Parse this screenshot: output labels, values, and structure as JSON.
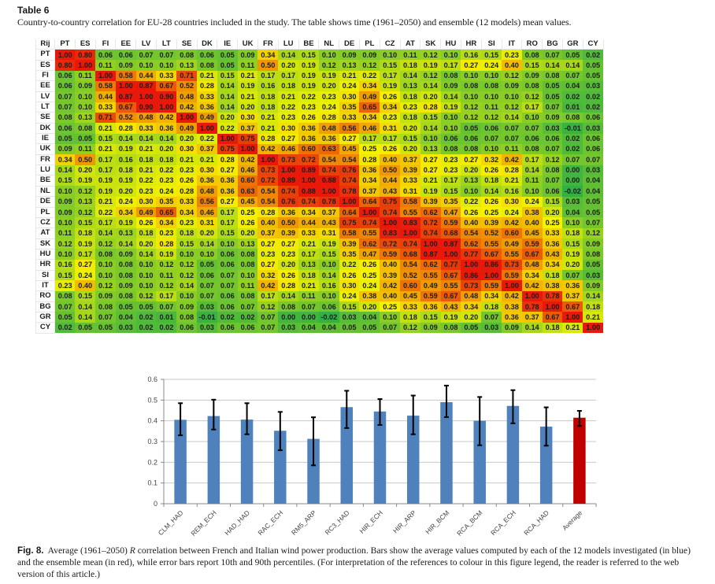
{
  "table": {
    "title": "Table 6",
    "caption": "Country-to-country correlation for EU-28 countries included in the study. The table shows time (1961–2050) and ensemble (12 models) mean values.",
    "corner_label": "Rij",
    "countries": [
      "PT",
      "ES",
      "FI",
      "EE",
      "LV",
      "LT",
      "SE",
      "DK",
      "IE",
      "UK",
      "FR",
      "LU",
      "BE",
      "NL",
      "DE",
      "PL",
      "CZ",
      "AT",
      "SK",
      "HU",
      "HR",
      "SI",
      "IT",
      "RO",
      "BG",
      "GR",
      "CY"
    ],
    "rows": [
      [
        "1.00",
        "0.80",
        "0.06",
        "0.06",
        "0.07",
        "0.07",
        "0.08",
        "0.06",
        "0.05",
        "0.09",
        "0.34",
        "0.14",
        "0.15",
        "0.10",
        "0.09",
        "0.09",
        "0.10",
        "0.11",
        "0.12",
        "0.10",
        "0.16",
        "0.15",
        "0.23",
        "0.08",
        "0.07",
        "0.05",
        "0.02"
      ],
      [
        "0.80",
        "1.00",
        "0.11",
        "0.09",
        "0.10",
        "0.10",
        "0.13",
        "0.08",
        "0.05",
        "0.11",
        "0.50",
        "0.20",
        "0.19",
        "0.12",
        "0.13",
        "0.12",
        "0.15",
        "0.18",
        "0.19",
        "0.17",
        "0.27",
        "0.24",
        "0.40",
        "0.15",
        "0.14",
        "0.14",
        "0.05"
      ],
      [
        "0.06",
        "0.11",
        "1.00",
        "0.58",
        "0.44",
        "0.33",
        "0.71",
        "0.21",
        "0.15",
        "0.21",
        "0.17",
        "0.17",
        "0.19",
        "0.19",
        "0.21",
        "0.22",
        "0.17",
        "0.14",
        "0.12",
        "0.08",
        "0.10",
        "0.10",
        "0.12",
        "0.09",
        "0.08",
        "0.07",
        "0.05"
      ],
      [
        "0.06",
        "0.09",
        "0.58",
        "1.00",
        "0.87",
        "0.67",
        "0.52",
        "0.28",
        "0.14",
        "0.19",
        "0.16",
        "0.18",
        "0.19",
        "0.20",
        "0.24",
        "0.34",
        "0.19",
        "0.13",
        "0.14",
        "0.09",
        "0.08",
        "0.08",
        "0.09",
        "0.08",
        "0.05",
        "0.04",
        "0.03"
      ],
      [
        "0.07",
        "0.10",
        "0.44",
        "0.87",
        "1.00",
        "0.90",
        "0.48",
        "0.33",
        "0.14",
        "0.21",
        "0.18",
        "0.21",
        "0.22",
        "0.23",
        "0.30",
        "0.49",
        "0.26",
        "0.18",
        "0.20",
        "0.14",
        "0.10",
        "0.10",
        "0.10",
        "0.12",
        "0.05",
        "0.02",
        "0.02"
      ],
      [
        "0.07",
        "0.10",
        "0.33",
        "0.67",
        "0.90",
        "1.00",
        "0.42",
        "0.36",
        "0.14",
        "0.20",
        "0.18",
        "0.22",
        "0.23",
        "0.24",
        "0.35",
        "0.65",
        "0.34",
        "0.23",
        "0.28",
        "0.19",
        "0.12",
        "0.11",
        "0.12",
        "0.17",
        "0.07",
        "0.01",
        "0.02"
      ],
      [
        "0.08",
        "0.13",
        "0.71",
        "0.52",
        "0.48",
        "0.42",
        "1.00",
        "0.49",
        "0.20",
        "0.30",
        "0.21",
        "0.23",
        "0.26",
        "0.28",
        "0.33",
        "0.34",
        "0.23",
        "0.18",
        "0.15",
        "0.10",
        "0.12",
        "0.12",
        "0.14",
        "0.10",
        "0.09",
        "0.08",
        "0.06"
      ],
      [
        "0.06",
        "0.08",
        "0.21",
        "0.28",
        "0.33",
        "0.36",
        "0.49",
        "1.00",
        "0.22",
        "0.37",
        "0.21",
        "0.30",
        "0.36",
        "0.48",
        "0.56",
        "0.46",
        "0.31",
        "0.20",
        "0.14",
        "0.10",
        "0.05",
        "0.06",
        "0.07",
        "0.07",
        "0.03",
        "-0.01",
        "0.03"
      ],
      [
        "0.05",
        "0.05",
        "0.15",
        "0.14",
        "0.14",
        "0.14",
        "0.20",
        "0.22",
        "1.00",
        "0.75",
        "0.28",
        "0.27",
        "0.36",
        "0.36",
        "0.27",
        "0.17",
        "0.17",
        "0.15",
        "0.10",
        "0.06",
        "0.06",
        "0.07",
        "0.07",
        "0.06",
        "0.06",
        "0.02",
        "0.06"
      ],
      [
        "0.09",
        "0.11",
        "0.21",
        "0.19",
        "0.21",
        "0.20",
        "0.30",
        "0.37",
        "0.75",
        "1.00",
        "0.42",
        "0.46",
        "0.60",
        "0.63",
        "0.45",
        "0.25",
        "0.26",
        "0.20",
        "0.13",
        "0.08",
        "0.08",
        "0.10",
        "0.11",
        "0.08",
        "0.07",
        "0.02",
        "0.06"
      ],
      [
        "0.34",
        "0.50",
        "0.17",
        "0.16",
        "0.18",
        "0.18",
        "0.21",
        "0.21",
        "0.28",
        "0.42",
        "1.00",
        "0.73",
        "0.72",
        "0.54",
        "0.54",
        "0.28",
        "0.40",
        "0.37",
        "0.27",
        "0.23",
        "0.27",
        "0.32",
        "0.42",
        "0.17",
        "0.12",
        "0.07",
        "0.07"
      ],
      [
        "0.14",
        "0.20",
        "0.17",
        "0.18",
        "0.21",
        "0.22",
        "0.23",
        "0.30",
        "0.27",
        "0.46",
        "0.73",
        "1.00",
        "0.89",
        "0.74",
        "0.76",
        "0.36",
        "0.50",
        "0.39",
        "0.27",
        "0.23",
        "0.20",
        "0.26",
        "0.28",
        "0.14",
        "0.08",
        "0.00",
        "0.03"
      ],
      [
        "0.15",
        "0.19",
        "0.19",
        "0.19",
        "0.22",
        "0.23",
        "0.26",
        "0.36",
        "0.36",
        "0.60",
        "0.72",
        "0.89",
        "1.00",
        "0.88",
        "0.74",
        "0.34",
        "0.44",
        "0.33",
        "0.21",
        "0.17",
        "0.13",
        "0.18",
        "0.21",
        "0.11",
        "0.07",
        "0.00",
        "0.04"
      ],
      [
        "0.10",
        "0.12",
        "0.19",
        "0.20",
        "0.23",
        "0.24",
        "0.28",
        "0.48",
        "0.36",
        "0.63",
        "0.54",
        "0.74",
        "0.88",
        "1.00",
        "0.78",
        "0.37",
        "0.43",
        "0.31",
        "0.19",
        "0.15",
        "0.10",
        "0.14",
        "0.16",
        "0.10",
        "0.06",
        "-0.02",
        "0.04"
      ],
      [
        "0.09",
        "0.13",
        "0.21",
        "0.24",
        "0.30",
        "0.35",
        "0.33",
        "0.56",
        "0.27",
        "0.45",
        "0.54",
        "0.76",
        "0.74",
        "0.78",
        "1.00",
        "0.64",
        "0.75",
        "0.58",
        "0.39",
        "0.35",
        "0.22",
        "0.26",
        "0.30",
        "0.24",
        "0.15",
        "0.03",
        "0.05"
      ],
      [
        "0.09",
        "0.12",
        "0.22",
        "0.34",
        "0.49",
        "0.65",
        "0.34",
        "0.46",
        "0.17",
        "0.25",
        "0.28",
        "0.36",
        "0.34",
        "0.37",
        "0.64",
        "1.00",
        "0.74",
        "0.55",
        "0.62",
        "0.47",
        "0.26",
        "0.25",
        "0.24",
        "0.38",
        "0.20",
        "0.04",
        "0.05"
      ],
      [
        "0.10",
        "0.15",
        "0.17",
        "0.19",
        "0.26",
        "0.34",
        "0.23",
        "0.31",
        "0.17",
        "0.26",
        "0.40",
        "0.50",
        "0.44",
        "0.43",
        "0.75",
        "0.74",
        "1.00",
        "0.83",
        "0.72",
        "0.59",
        "0.40",
        "0.39",
        "0.42",
        "0.40",
        "0.25",
        "0.10",
        "0.07"
      ],
      [
        "0.11",
        "0.18",
        "0.14",
        "0.13",
        "0.18",
        "0.23",
        "0.18",
        "0.20",
        "0.15",
        "0.20",
        "0.37",
        "0.39",
        "0.33",
        "0.31",
        "0.58",
        "0.55",
        "0.83",
        "1.00",
        "0.74",
        "0.68",
        "0.54",
        "0.52",
        "0.60",
        "0.45",
        "0.33",
        "0.18",
        "0.12"
      ],
      [
        "0.12",
        "0.19",
        "0.12",
        "0.14",
        "0.20",
        "0.28",
        "0.15",
        "0.14",
        "0.10",
        "0.13",
        "0.27",
        "0.27",
        "0.21",
        "0.19",
        "0.39",
        "0.62",
        "0.72",
        "0.74",
        "1.00",
        "0.87",
        "0.62",
        "0.55",
        "0.49",
        "0.59",
        "0.36",
        "0.15",
        "0.09"
      ],
      [
        "0.10",
        "0.17",
        "0.08",
        "0.09",
        "0.14",
        "0.19",
        "0.10",
        "0.10",
        "0.06",
        "0.08",
        "0.23",
        "0.23",
        "0.17",
        "0.15",
        "0.35",
        "0.47",
        "0.59",
        "0.68",
        "0.87",
        "1.00",
        "0.77",
        "0.67",
        "0.55",
        "0.67",
        "0.43",
        "0.19",
        "0.08"
      ],
      [
        "0.16",
        "0.27",
        "0.10",
        "0.08",
        "0.10",
        "0.12",
        "0.12",
        "0.05",
        "0.06",
        "0.08",
        "0.27",
        "0.20",
        "0.13",
        "0.10",
        "0.22",
        "0.26",
        "0.40",
        "0.54",
        "0.62",
        "0.77",
        "1.00",
        "0.86",
        "0.73",
        "0.48",
        "0.34",
        "0.20",
        "0.05"
      ],
      [
        "0.15",
        "0.24",
        "0.10",
        "0.08",
        "0.10",
        "0.11",
        "0.12",
        "0.06",
        "0.07",
        "0.10",
        "0.32",
        "0.26",
        "0.18",
        "0.14",
        "0.26",
        "0.25",
        "0.39",
        "0.52",
        "0.55",
        "0.67",
        "0.86",
        "1.00",
        "0.59",
        "0.34",
        "0.18",
        "0.07",
        "0.03"
      ],
      [
        "0.23",
        "0.40",
        "0.12",
        "0.09",
        "0.10",
        "0.12",
        "0.14",
        "0.07",
        "0.07",
        "0.11",
        "0.42",
        "0.28",
        "0.21",
        "0.16",
        "0.30",
        "0.24",
        "0.42",
        "0.60",
        "0.49",
        "0.55",
        "0.73",
        "0.59",
        "1.00",
        "0.42",
        "0.38",
        "0.36",
        "0.09"
      ],
      [
        "0.08",
        "0.15",
        "0.09",
        "0.08",
        "0.12",
        "0.17",
        "0.10",
        "0.07",
        "0.06",
        "0.08",
        "0.17",
        "0.14",
        "0.11",
        "0.10",
        "0.24",
        "0.38",
        "0.40",
        "0.45",
        "0.59",
        "0.67",
        "0.48",
        "0.34",
        "0.42",
        "1.00",
        "0.78",
        "0.37",
        "0.14"
      ],
      [
        "0.07",
        "0.14",
        "0.08",
        "0.05",
        "0.05",
        "0.07",
        "0.09",
        "0.03",
        "0.06",
        "0.07",
        "0.12",
        "0.08",
        "0.07",
        "0.06",
        "0.15",
        "0.20",
        "0.25",
        "0.33",
        "0.36",
        "0.43",
        "0.34",
        "0.18",
        "0.38",
        "0.78",
        "1.00",
        "0.67",
        "0.18"
      ],
      [
        "0.05",
        "0.14",
        "0.07",
        "0.04",
        "0.02",
        "0.01",
        "0.08",
        "-0.01",
        "0.02",
        "0.02",
        "0.07",
        "0.00",
        "0.00",
        "-0.02",
        "0.03",
        "0.04",
        "0.10",
        "0.18",
        "0.15",
        "0.19",
        "0.20",
        "0.07",
        "0.36",
        "0.37",
        "0.67",
        "1.00",
        "0.21"
      ],
      [
        "0.02",
        "0.05",
        "0.05",
        "0.03",
        "0.02",
        "0.02",
        "0.06",
        "0.03",
        "0.06",
        "0.06",
        "0.07",
        "0.03",
        "0.04",
        "0.04",
        "0.05",
        "0.05",
        "0.07",
        "0.12",
        "0.09",
        "0.08",
        "0.05",
        "0.03",
        "0.09",
        "0.14",
        "0.18",
        "0.21",
        "1.00"
      ]
    ],
    "colors": {
      "low": "#33b044",
      "mid": "#f5f200",
      "high": "#e8180a"
    }
  },
  "chart_data": {
    "type": "bar",
    "title": "",
    "xlabel": "",
    "ylabel": "",
    "categories": [
      "CLM_HAD",
      "REM_ECH",
      "HAD_HAD",
      "RAC_ECH",
      "RM5_ARP",
      "RC3_HAD",
      "HIR_ECH",
      "HIR_ARP",
      "HIR_BCM",
      "RCA_BCM",
      "RCA_ECH",
      "RCA_HAD",
      "Average"
    ],
    "values": [
      0.405,
      0.423,
      0.406,
      0.352,
      0.313,
      0.466,
      0.445,
      0.425,
      0.49,
      0.4,
      0.472,
      0.372,
      0.415
    ],
    "error_low": [
      0.33,
      0.358,
      0.335,
      0.258,
      0.185,
      0.365,
      0.38,
      0.335,
      0.418,
      0.282,
      0.388,
      0.28,
      0.375
    ],
    "error_high": [
      0.485,
      0.502,
      0.485,
      0.443,
      0.417,
      0.545,
      0.505,
      0.522,
      0.57,
      0.515,
      0.548,
      0.465,
      0.448
    ],
    "bar_colors": [
      "#4f81bd",
      "#4f81bd",
      "#4f81bd",
      "#4f81bd",
      "#4f81bd",
      "#4f81bd",
      "#4f81bd",
      "#4f81bd",
      "#4f81bd",
      "#4f81bd",
      "#4f81bd",
      "#4f81bd",
      "#c00000"
    ],
    "yticks": [
      "0",
      "0.1",
      "0.2",
      "0.3",
      "0.4",
      "0.5",
      "0.6"
    ],
    "ylim": [
      0,
      0.6
    ],
    "grid": true,
    "legend": "none"
  },
  "figure": {
    "label": "Fig. 8.",
    "caption_pre": "Average (1961–2050) ",
    "caption_italic": "R",
    "caption_post": " correlation between French and Italian wind power production. Bars show the average values computed by each of the 12 models investigated (in blue) and the ensemble mean (in red), while error bars report 10th and 90th percentiles. (For interpretation of the references to colour in this figure legend, the reader is referred to the web version of this article.)"
  }
}
